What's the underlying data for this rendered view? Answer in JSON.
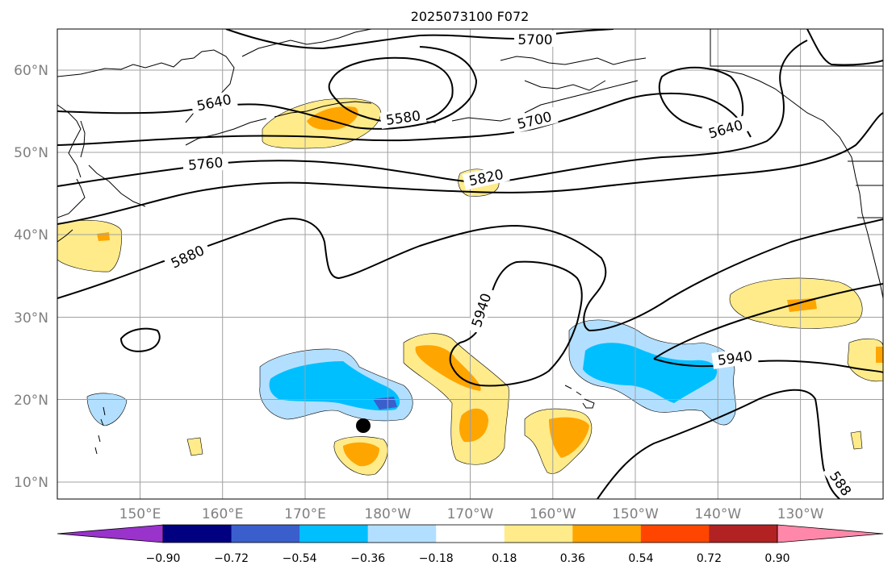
{
  "title": "2025073100 F072",
  "lat_labels": [
    "60°N",
    "50°N",
    "40°N",
    "30°N",
    "20°N",
    "10°N"
  ],
  "lon_labels": [
    "150°E",
    "160°E",
    "170°E",
    "180°W",
    "170°W",
    "160°W",
    "150°W",
    "140°W",
    "130°W"
  ],
  "contour_labels": [
    "5700",
    "5640",
    "5580",
    "5700",
    "5640",
    "5760",
    "5820",
    "5880",
    "5940",
    "5940",
    "588"
  ],
  "colorbar": {
    "colors": [
      "#9933cc",
      "#000080",
      "#3a5fcd",
      "#00bfff",
      "#b2dfff",
      "#ffffff",
      "#ffeb8a",
      "#ffa500",
      "#ff4500",
      "#b22222",
      "#ff88aa"
    ],
    "ticks": [
      "−0.90",
      "−0.72",
      "−0.54",
      "−0.36",
      "−0.18",
      "0.18",
      "0.36",
      "0.54",
      "0.72",
      "0.90"
    ]
  },
  "marker": {
    "type": "black-dot"
  },
  "colors": {
    "positive_light": "#ffeb8a",
    "positive_mid": "#ffa500",
    "negative_light": "#b2dfff",
    "negative_mid": "#00bfff",
    "negative_dark": "#3a5fcd"
  }
}
